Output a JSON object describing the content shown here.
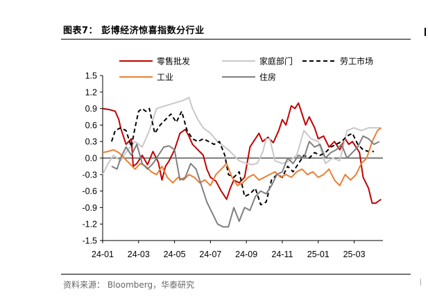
{
  "figure": {
    "title": "图表7：  彭博经济惊喜指数分行业",
    "source": "资料来源：  Bloomberg，华泰研究"
  },
  "chart_data": {
    "type": "line",
    "title": "",
    "xlabel": "",
    "ylabel": "",
    "x_ticks": [
      "24-01",
      "24-03",
      "24-05",
      "24-07",
      "24-09",
      "24-11",
      "25-01",
      "25-03"
    ],
    "x_range": [
      0,
      15.6
    ],
    "ylim": [
      -1.5,
      1.5
    ],
    "y_ticks": [
      "1.5",
      "1.2",
      "0.9",
      "0.6",
      "0.3",
      "0.0",
      "-0.3",
      "-0.6",
      "-0.9",
      "-1.2",
      "-1.5"
    ],
    "y_tick_values": [
      1.5,
      1.2,
      0.9,
      0.6,
      0.3,
      0.0,
      -0.3,
      -0.6,
      -0.9,
      -1.2,
      -1.5
    ],
    "zero_line": true,
    "grid": false,
    "legend_position": "top",
    "series": [
      {
        "name": "零售批发",
        "color": "#c00000",
        "dash": "solid",
        "x": [
          0,
          0.4,
          0.7,
          0.9,
          1.0,
          1.3,
          1.6,
          1.7,
          1.9,
          2.2,
          2.5,
          2.8,
          3.1,
          3.3,
          3.5,
          3.7,
          4.0,
          4.3,
          4.6,
          4.8,
          5.0,
          5.3,
          5.6,
          5.8,
          6.0,
          6.3,
          6.6,
          6.9,
          7.1,
          7.3,
          7.6,
          7.9,
          8.2,
          8.5,
          8.7,
          8.9,
          9.2,
          9.5,
          9.8,
          10.0,
          10.2,
          10.5,
          10.7,
          10.9,
          11.1,
          11.3,
          11.5,
          11.8,
          12.0,
          12.3,
          12.6,
          12.9,
          13.2,
          13.5,
          13.7,
          13.9,
          14.1,
          14.3,
          14.5,
          14.8,
          15.0,
          15.2,
          15.5
        ],
        "y": [
          0.9,
          0.88,
          0.85,
          0.7,
          0.55,
          0.25,
          0.35,
          -0.15,
          -0.1,
          0.05,
          -0.12,
          0.12,
          -0.08,
          -0.4,
          -0.15,
          -0.05,
          0.15,
          0.45,
          0.52,
          0.4,
          0.25,
          0.15,
          0.05,
          -0.2,
          -0.35,
          -0.42,
          -0.6,
          -0.75,
          -0.55,
          -0.4,
          -0.45,
          -0.35,
          0.2,
          0.35,
          0.45,
          0.3,
          0.38,
          0.28,
          0.5,
          0.7,
          0.6,
          0.95,
          0.9,
          1.0,
          0.8,
          0.6,
          0.75,
          0.55,
          0.35,
          0.4,
          0.2,
          0.3,
          0.15,
          0.35,
          0.25,
          0.3,
          0.2,
          0.1,
          -0.35,
          -0.55,
          -0.82,
          -0.82,
          -0.75
        ]
      },
      {
        "name": "家庭部门",
        "color": "#c8c8c8",
        "dash": "solid",
        "x": [
          0,
          0.3,
          0.6,
          1.0,
          1.4,
          1.8,
          2.2,
          2.6,
          3.0,
          3.5,
          4.0,
          4.5,
          4.8,
          5.0,
          5.3,
          5.6,
          6.0,
          6.4,
          6.8,
          7.0,
          7.3,
          7.6,
          8.0,
          8.3,
          8.6,
          8.9,
          9.1,
          9.3,
          9.6,
          10.0,
          10.4,
          10.8,
          11.2,
          11.6,
          12.0,
          12.4,
          12.8,
          13.2,
          13.6,
          14.0,
          14.4,
          14.8,
          15.2,
          15.5
        ],
        "y": [
          -0.3,
          -0.1,
          0.05,
          -0.05,
          0.15,
          0.3,
          0.2,
          0.5,
          0.9,
          0.95,
          1.0,
          1.05,
          1.1,
          0.9,
          0.7,
          0.55,
          0.45,
          0.3,
          0.2,
          0.15,
          0.05,
          -0.05,
          -0.1,
          -0.12,
          -0.1,
          0.1,
          0.35,
          0.35,
          -0.05,
          -0.1,
          -0.05,
          0.05,
          0.5,
          0.35,
          0.3,
          -0.1,
          0.0,
          -0.05,
          0.5,
          0.55,
          0.5,
          0.55,
          0.55,
          0.55
        ]
      },
      {
        "name": "劳工市场",
        "color": "#000000",
        "dash": "dashed",
        "x": [
          0.5,
          0.7,
          1.0,
          1.3,
          1.6,
          1.8,
          2.0,
          2.2,
          2.4,
          2.6,
          2.9,
          3.2,
          3.5,
          3.8,
          4.1,
          4.4,
          4.7,
          5.0,
          5.3,
          5.6,
          5.9,
          6.2,
          6.5,
          6.8,
          7.0,
          7.3,
          7.6,
          7.9,
          8.2,
          8.5,
          8.8,
          9.1,
          9.4,
          9.7,
          10.0,
          10.3,
          10.6,
          10.9,
          11.2,
          11.5,
          11.8,
          12.1,
          12.4,
          12.7,
          13.0,
          13.3,
          13.6,
          13.9,
          14.2,
          14.5,
          14.8,
          15.1
        ],
        "y": [
          0.3,
          0.5,
          0.55,
          0.5,
          0.2,
          0.55,
          0.85,
          0.9,
          0.85,
          0.9,
          0.45,
          0.6,
          0.7,
          0.8,
          0.65,
          0.85,
          0.5,
          0.35,
          0.3,
          0.35,
          0.3,
          0.25,
          0.3,
          0.05,
          -0.3,
          -0.35,
          -0.25,
          -0.7,
          -0.65,
          -0.55,
          -0.85,
          -0.8,
          -0.4,
          -0.3,
          -0.35,
          -0.15,
          -0.25,
          -0.1,
          0.05,
          0.0,
          0.1,
          0.05,
          0.1,
          0.2,
          0.25,
          0.3,
          0.4,
          0.45,
          0.25,
          0.15,
          0.12,
          0.12
        ]
      },
      {
        "name": "工业",
        "color": "#ed7d31",
        "dash": "solid",
        "x": [
          0,
          0.3,
          0.6,
          0.9,
          1.2,
          1.5,
          1.8,
          2.1,
          2.4,
          2.7,
          3.0,
          3.3,
          3.6,
          3.9,
          4.2,
          4.5,
          4.8,
          5.1,
          5.4,
          5.7,
          6.0,
          6.3,
          6.6,
          6.9,
          7.2,
          7.5,
          7.8,
          8.1,
          8.4,
          8.7,
          9.0,
          9.3,
          9.6,
          9.9,
          10.2,
          10.5,
          10.8,
          11.1,
          11.4,
          11.7,
          12.0,
          12.3,
          12.6,
          12.9,
          13.2,
          13.5,
          13.8,
          14.1,
          14.4,
          14.7,
          15.0,
          15.3,
          15.5
        ],
        "y": [
          0.1,
          0.12,
          0.15,
          0.1,
          0.0,
          -0.1,
          -0.2,
          -0.1,
          -0.15,
          -0.25,
          -0.3,
          -0.15,
          -0.35,
          -0.45,
          -0.35,
          -0.4,
          -0.3,
          -0.35,
          -0.45,
          -0.4,
          -0.5,
          -0.3,
          -0.2,
          -0.1,
          -0.35,
          -0.5,
          -0.45,
          -0.35,
          -0.3,
          -0.4,
          -0.35,
          -0.3,
          -0.25,
          -0.35,
          -0.3,
          -0.35,
          -0.25,
          -0.2,
          -0.3,
          -0.25,
          -0.35,
          -0.3,
          -0.2,
          -0.4,
          -0.5,
          -0.3,
          -0.4,
          -0.3,
          -0.1,
          0.0,
          0.3,
          0.5,
          0.55
        ]
      },
      {
        "name": "住房",
        "color": "#7f7f7f",
        "dash": "solid",
        "x": [
          0.5,
          0.8,
          1.0,
          1.3,
          1.6,
          1.9,
          2.2,
          2.5,
          2.8,
          3.1,
          3.4,
          3.7,
          4.0,
          4.3,
          4.6,
          4.9,
          5.2,
          5.5,
          5.8,
          6.1,
          6.4,
          6.7,
          7.0,
          7.3,
          7.6,
          7.9,
          8.2,
          8.5,
          8.8,
          9.1,
          9.4,
          9.7,
          10.0,
          10.3,
          10.6,
          10.9,
          11.2,
          11.5,
          11.8,
          12.1,
          12.4,
          12.7,
          13.0,
          13.3,
          13.6,
          13.9,
          14.2,
          14.5,
          14.8,
          15.1,
          15.4
        ],
        "y": [
          -0.15,
          -0.2,
          0.0,
          0.2,
          0.05,
          0.25,
          -0.1,
          -0.2,
          -0.1,
          0.05,
          0.2,
          0.22,
          0.15,
          -0.4,
          -0.35,
          -0.1,
          -0.2,
          -0.5,
          -0.8,
          -1.0,
          -1.2,
          -1.25,
          -1.25,
          -0.9,
          -1.15,
          -0.9,
          -0.95,
          -0.7,
          -0.6,
          -0.65,
          -0.5,
          -0.3,
          -0.25,
          0.0,
          -0.1,
          0.05,
          0.0,
          0.3,
          0.2,
          0.25,
          0.0,
          0.1,
          0.15,
          0.25,
          0.0,
          0.1,
          0.2,
          0.4,
          0.35,
          0.25,
          0.3
        ]
      }
    ]
  }
}
